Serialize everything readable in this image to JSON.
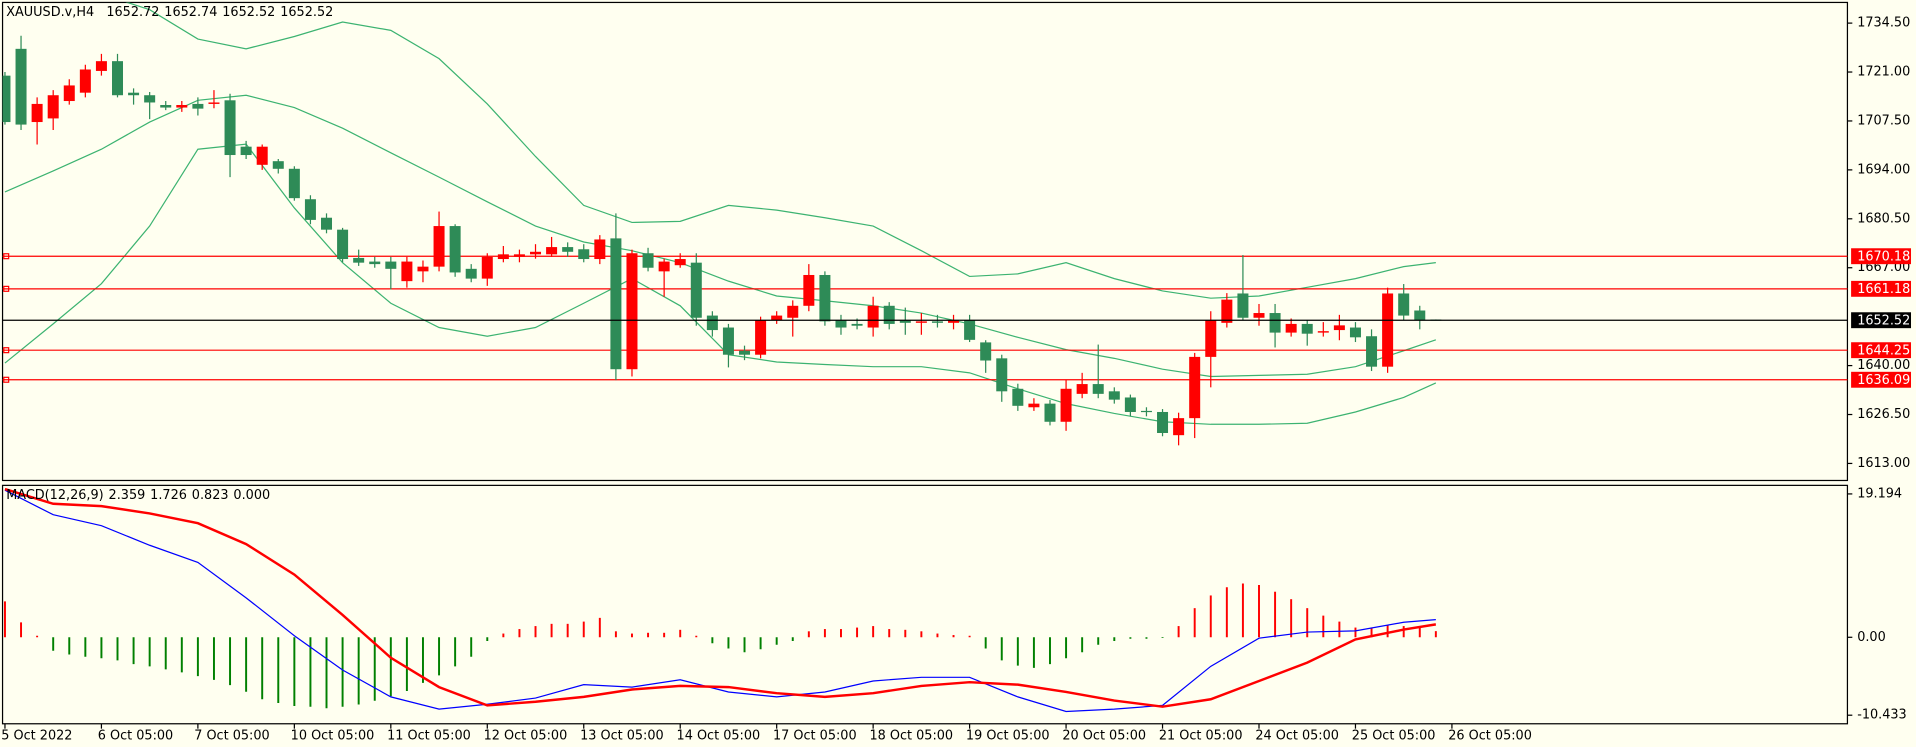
{
  "chart_data": [
    {
      "type": "candlestick",
      "title": "XAUUSD.v,H4",
      "open": [
        1720.0,
        1727.4,
        1707.2,
        1708.2,
        1713.0,
        1715.3,
        1721.3,
        1724.0,
        1715.3,
        1714.6,
        1711.9,
        1711.2,
        1712.2,
        1712.2,
        1713.2,
        1700.4,
        1695.4,
        1696.4,
        1694.3,
        1685.9,
        1680.8,
        1677.5,
        1669.7,
        1668.7,
        1668.7,
        1663.3,
        1666.0,
        1667.3,
        1678.5,
        1666.7,
        1664.0,
        1669.4,
        1670.0,
        1670.7,
        1670.7,
        1672.7,
        1672.1,
        1669.4,
        1675.1,
        1639.0,
        1671.0,
        1666.0,
        1667.7,
        1668.4,
        1653.8,
        1650.5,
        1644.1,
        1643.0,
        1652.5,
        1653.2,
        1656.5,
        1665.0,
        1652.5,
        1651.5,
        1650.5,
        1656.5,
        1652.5,
        1651.8,
        1652.2,
        1651.8,
        1652.5,
        1646.4,
        1642.0,
        1633.6,
        1628.5,
        1629.5,
        1624.5,
        1632.2,
        1634.9,
        1632.9,
        1631.2,
        1627.5,
        1627.2,
        1620.8,
        1625.5,
        1642.4,
        1651.8,
        1659.9,
        1653.2,
        1654.5,
        1649.1,
        1651.5,
        1649.1,
        1649.8,
        1650.5,
        1648.1,
        1639.7,
        1659.9,
        1655.2,
        1652.72
      ],
      "high": [
        1721.0,
        1731.0,
        1714.0,
        1716.0,
        1719.0,
        1723.0,
        1726.0,
        1726.0,
        1716.5,
        1715.5,
        1713.0,
        1713.0,
        1714.0,
        1716.0,
        1715.0,
        1702.0,
        1701.0,
        1697.0,
        1695.0,
        1687.0,
        1682.0,
        1678.0,
        1672.0,
        1670.0,
        1670.0,
        1670.0,
        1669.0,
        1682.5,
        1679.0,
        1668.0,
        1671.0,
        1673.0,
        1672.0,
        1673.5,
        1675.5,
        1674.0,
        1673.5,
        1676.0,
        1682.0,
        1672.0,
        1672.5,
        1669.5,
        1671.0,
        1671.0,
        1655.0,
        1651.5,
        1645.5,
        1653.5,
        1655.0,
        1658.0,
        1668.0,
        1666.0,
        1654.0,
        1653.0,
        1659.0,
        1657.5,
        1656.0,
        1654.5,
        1654.0,
        1654.0,
        1654.0,
        1647.0,
        1643.0,
        1635.0,
        1631.0,
        1630.5,
        1636.0,
        1638.0,
        1645.8,
        1634.0,
        1632.0,
        1628.5,
        1628.0,
        1627.0,
        1643.5,
        1655.0,
        1660.0,
        1670.5,
        1657.0,
        1657.0,
        1653.0,
        1652.5,
        1652.0,
        1654.0,
        1652.0,
        1650.0,
        1661.5,
        1662.5,
        1656.5,
        1652.74
      ],
      "low": [
        1706.5,
        1705.0,
        1701.0,
        1705.0,
        1712.0,
        1714.0,
        1720.0,
        1714.0,
        1712.0,
        1708.0,
        1710.5,
        1710.0,
        1709.0,
        1711.0,
        1692.0,
        1697.0,
        1694.0,
        1693.0,
        1685.5,
        1679.0,
        1676.5,
        1668.5,
        1667.5,
        1667.0,
        1661.0,
        1661.5,
        1663.0,
        1666.0,
        1664.5,
        1663.0,
        1662.0,
        1668.5,
        1668.5,
        1669.5,
        1670.0,
        1670.0,
        1668.5,
        1668.0,
        1636.0,
        1637.0,
        1666.0,
        1659.0,
        1667.0,
        1651.0,
        1648.0,
        1639.5,
        1641.5,
        1642.0,
        1651.5,
        1648.0,
        1655.0,
        1651.0,
        1648.5,
        1650.0,
        1648.0,
        1650.0,
        1648.5,
        1648.5,
        1650.5,
        1650.0,
        1646.5,
        1638.0,
        1630.0,
        1627.5,
        1627.5,
        1623.5,
        1622.0,
        1631.0,
        1631.0,
        1629.5,
        1626.0,
        1626.0,
        1620.5,
        1618.0,
        1620.0,
        1634.0,
        1650.5,
        1652.5,
        1651.0,
        1645.0,
        1648.0,
        1645.5,
        1648.0,
        1647.0,
        1646.5,
        1638.5,
        1638.0,
        1652.5,
        1650.0,
        1652.52
      ],
      "close": [
        1707.2,
        1706.5,
        1712.2,
        1714.6,
        1717.3,
        1721.7,
        1724.0,
        1714.6,
        1714.6,
        1712.6,
        1711.2,
        1711.9,
        1710.9,
        1712.6,
        1698.1,
        1698.1,
        1700.4,
        1694.3,
        1686.2,
        1680.2,
        1677.5,
        1669.4,
        1668.4,
        1668.0,
        1666.7,
        1668.7,
        1667.3,
        1678.5,
        1665.7,
        1664.0,
        1670.0,
        1670.7,
        1670.7,
        1671.4,
        1672.7,
        1671.4,
        1669.4,
        1674.8,
        1639.0,
        1671.0,
        1667.0,
        1668.7,
        1669.4,
        1653.2,
        1649.8,
        1643.0,
        1643.0,
        1652.5,
        1653.8,
        1656.5,
        1665.0,
        1652.2,
        1650.5,
        1651.0,
        1656.5,
        1651.5,
        1651.8,
        1652.2,
        1651.8,
        1652.5,
        1647.1,
        1641.4,
        1632.9,
        1628.9,
        1629.5,
        1624.5,
        1633.6,
        1634.9,
        1632.2,
        1630.6,
        1627.2,
        1627.2,
        1621.4,
        1625.5,
        1642.4,
        1652.5,
        1658.2,
        1653.2,
        1654.5,
        1649.1,
        1651.5,
        1648.8,
        1649.5,
        1651.1,
        1647.8,
        1639.7,
        1659.9,
        1653.8,
        1652.5,
        1652.52
      ],
      "up_color": "#ff0000",
      "down_color": "#2e8b57",
      "bands": {
        "color": "#3cb371",
        "x": [
          0,
          3,
          6,
          9,
          12,
          15,
          18,
          21,
          24,
          27,
          30,
          33,
          36,
          39,
          42,
          45,
          48,
          51,
          54,
          57,
          60,
          63,
          66,
          69,
          72,
          75,
          78,
          81,
          84,
          87,
          89
        ],
        "upper": [
          1752.0,
          1748.0,
          1742.5,
          1738.2,
          1730.1,
          1727.4,
          1730.8,
          1734.8,
          1732.5,
          1724.7,
          1712.2,
          1697.7,
          1684.2,
          1679.5,
          1679.8,
          1684.2,
          1682.9,
          1680.8,
          1678.5,
          1671.7,
          1664.6,
          1665.3,
          1668.4,
          1664.0,
          1660.6,
          1658.6,
          1659.2,
          1661.6,
          1664.0,
          1667.3,
          1668.4
        ],
        "middle": [
          1687.9,
          1693.7,
          1699.7,
          1707.2,
          1713.2,
          1714.6,
          1711.2,
          1705.5,
          1698.7,
          1692.0,
          1685.2,
          1678.5,
          1674.1,
          1671.7,
          1668.4,
          1663.3,
          1659.2,
          1657.9,
          1656.5,
          1654.5,
          1651.5,
          1647.8,
          1644.4,
          1642.0,
          1639.0,
          1637.0,
          1637.3,
          1637.6,
          1639.7,
          1644.1,
          1647.1
        ],
        "lower": [
          1640.7,
          1651.5,
          1662.6,
          1678.5,
          1699.7,
          1701.1,
          1683.5,
          1668.4,
          1657.2,
          1650.5,
          1648.1,
          1650.5,
          1657.2,
          1664.0,
          1656.5,
          1643.0,
          1641.0,
          1640.3,
          1639.7,
          1639.7,
          1638.0,
          1633.6,
          1629.5,
          1626.8,
          1624.5,
          1623.8,
          1623.8,
          1624.1,
          1627.2,
          1631.2,
          1635.2
        ]
      },
      "levels": [
        1670.18,
        1661.18,
        1644.25,
        1636.09
      ],
      "level_color": "#ff0000",
      "price_line_color": "#000000",
      "xlim": [
        -0.15,
        114.6
      ],
      "xticks": [
        {
          "value": 0,
          "label": "5 Oct 2022"
        },
        {
          "value": 6,
          "label": "6 Oct 05:00"
        },
        {
          "value": 12,
          "label": "7 Oct 05:00"
        },
        {
          "value": 18,
          "label": "10 Oct 05:00"
        },
        {
          "value": 24,
          "label": "11 Oct 05:00"
        },
        {
          "value": 30,
          "label": "12 Oct 05:00"
        },
        {
          "value": 36,
          "label": "13 Oct 05:00"
        },
        {
          "value": 42,
          "label": "14 Oct 05:00"
        },
        {
          "value": 48,
          "label": "17 Oct 05:00"
        },
        {
          "value": 54,
          "label": "18 Oct 05:00"
        },
        {
          "value": 60,
          "label": "19 Oct 05:00"
        },
        {
          "value": 66,
          "label": "20 Oct 05:00"
        },
        {
          "value": 72,
          "label": "21 Oct 05:00"
        },
        {
          "value": 78,
          "label": "24 Oct 05:00"
        },
        {
          "value": 84,
          "label": "25 Oct 05:00"
        },
        {
          "value": 90,
          "label": "26 Oct 05:00"
        }
      ],
      "ylim": [
        1608.3,
        1740.2
      ],
      "yticks": [
        {
          "value": 1734.5,
          "label": "1734.50"
        },
        {
          "value": 1721,
          "label": "1721.00"
        },
        {
          "value": 1707.5,
          "label": "1707.50"
        },
        {
          "value": 1694,
          "label": "1694.00"
        },
        {
          "value": 1680.5,
          "label": "1680.50"
        },
        {
          "value": 1667,
          "label": "1667.00"
        },
        {
          "value": 1640,
          "label": "1640.00"
        },
        {
          "value": 1626.5,
          "label": "1626.50"
        },
        {
          "value": 1613,
          "label": "1613.00"
        }
      ]
    },
    {
      "type": "macd",
      "title": "MACD(12,26,9)",
      "readout": [
        2.359,
        1.726,
        0.823,
        {
          "value": 0,
          "label": "0.000"
        }
      ],
      "histogram": [
        4.8,
        2.0,
        0.2,
        -1.8,
        -2.3,
        -2.6,
        -2.8,
        -3.1,
        -3.6,
        -3.9,
        -4.3,
        -4.7,
        -5.2,
        -5.7,
        -6.4,
        -7.3,
        -8.3,
        -8.8,
        -9.2,
        -9.3,
        -9.5,
        -9.3,
        -9.0,
        -8.5,
        -7.9,
        -7.2,
        -6.1,
        -5.1,
        -3.9,
        -2.6,
        -0.5,
        0.5,
        1.1,
        1.5,
        1.8,
        1.8,
        2.1,
        2.6,
        0.8,
        0.5,
        0.6,
        0.6,
        1.0,
        0.2,
        -0.8,
        -1.5,
        -2.0,
        -1.6,
        -1.0,
        -0.5,
        0.8,
        1.1,
        1.1,
        1.3,
        1.5,
        1.1,
        1.0,
        0.8,
        0.5,
        0.3,
        0.2,
        -1.5,
        -3.1,
        -3.8,
        -4.1,
        -3.6,
        -2.8,
        -2.0,
        -1.0,
        -0.5,
        -0.2,
        -0.2,
        -0.1,
        1.5,
        3.9,
        5.6,
        6.7,
        7.2,
        7.0,
        6.1,
        5.1,
        3.9,
        2.9,
        2.1,
        1.3,
        1.3,
        1.6,
        1.5,
        1.5,
        0.823
      ],
      "up_color": "#ff0000",
      "down_color": "#008000",
      "main": {
        "color": "#0000ff",
        "x": [
          0,
          3,
          6,
          9,
          12,
          15,
          18,
          21,
          24,
          27,
          30,
          33,
          36,
          39,
          42,
          45,
          48,
          51,
          54,
          57,
          60,
          63,
          66,
          69,
          72,
          75,
          78,
          81,
          84,
          87,
          89
        ],
        "values": [
          19.69,
          16.41,
          14.94,
          12.32,
          10.03,
          5.28,
          0.21,
          -4.38,
          -7.98,
          -9.62,
          -8.97,
          -8.14,
          -6.34,
          -6.67,
          -5.69,
          -7.32,
          -7.98,
          -7.32,
          -5.85,
          -5.36,
          -5.36,
          -7.98,
          -9.94,
          -9.62,
          -9.12,
          -3.89,
          -0.12,
          0.7,
          0.86,
          2.01,
          2.359
        ]
      },
      "signal": {
        "color": "#ff0000",
        "x": [
          0,
          3,
          6,
          9,
          12,
          15,
          18,
          21,
          24,
          27,
          30,
          33,
          36,
          39,
          42,
          45,
          48,
          51,
          54,
          57,
          60,
          63,
          66,
          69,
          72,
          75,
          78,
          81,
          84,
          87,
          89
        ],
        "values": [
          19.85,
          17.88,
          17.56,
          16.58,
          15.27,
          12.48,
          8.39,
          2.99,
          -2.74,
          -6.67,
          -9.12,
          -8.63,
          -7.98,
          -6.99,
          -6.51,
          -6.67,
          -7.49,
          -7.98,
          -7.49,
          -6.51,
          -6.01,
          -6.34,
          -7.32,
          -8.47,
          -9.29,
          -8.3,
          -5.85,
          -3.39,
          -0.28,
          1.03,
          1.726
        ]
      },
      "ylim": [
        -11.58,
        20.34
      ],
      "yticks": [
        19.194,
        {
          "value": 0,
          "label": "0.00"
        },
        -10.433
      ]
    }
  ]
}
